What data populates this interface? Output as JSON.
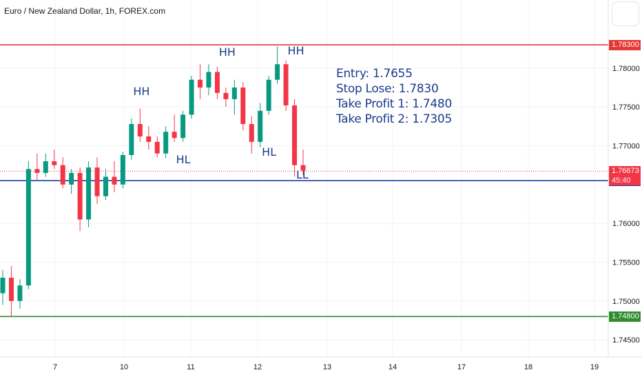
{
  "header": {
    "title": "Euro / New Zealand Dollar, 1h, FOREX.com"
  },
  "colors": {
    "up": "#089981",
    "down": "#f23645",
    "resistance": "#e53935",
    "support": "#1e3fb4",
    "target": "#2e8b2e",
    "annotation": "#1a3a8c"
  },
  "chart_data": {
    "type": "candlestick",
    "instrument": "Euro / New Zealand Dollar",
    "timeframe": "1h",
    "x_ticks": [
      "7",
      "10",
      "11",
      "12",
      "13",
      "14",
      "17",
      "18",
      "19"
    ],
    "y_ticks": [
      "1.78000",
      "1.77500",
      "1.77000",
      "1.76000",
      "1.75500",
      "1.75000",
      "1.74500"
    ],
    "ylim": [
      1.7435,
      1.787
    ],
    "levels": [
      {
        "name": "resistance",
        "value": 1.783,
        "label": "1.78300",
        "color": "#e53935"
      },
      {
        "name": "entry",
        "value": 1.7655,
        "label": "1.76550",
        "color": "#1e3fb4"
      },
      {
        "name": "target",
        "value": 1.748,
        "label": "1.74800",
        "color": "#2e8b2e"
      }
    ],
    "last_price": {
      "value": 1.76673,
      "label": "1.76673",
      "countdown": "45:40"
    },
    "annotations": [
      {
        "text": "HH",
        "x": 16,
        "y": 1.777
      },
      {
        "text": "HL",
        "x": 21,
        "y": 1.7682
      },
      {
        "text": "HH",
        "x": 26,
        "y": 1.782
      },
      {
        "text": "HL",
        "x": 31,
        "y": 1.7692
      },
      {
        "text": "HH",
        "x": 34,
        "y": 1.7822
      },
      {
        "text": "LL",
        "x": 35,
        "y": 1.7662
      }
    ],
    "candles": [
      [
        1.751,
        1.754,
        1.7495,
        1.753
      ],
      [
        1.753,
        1.7545,
        1.748,
        1.75
      ],
      [
        1.75,
        1.7528,
        1.749,
        1.752
      ],
      [
        1.752,
        1.768,
        1.7515,
        1.767
      ],
      [
        1.767,
        1.769,
        1.7655,
        1.7665
      ],
      [
        1.7665,
        1.769,
        1.766,
        1.768
      ],
      [
        1.768,
        1.7695,
        1.767,
        1.7675
      ],
      [
        1.7675,
        1.7685,
        1.7645,
        1.765
      ],
      [
        1.765,
        1.767,
        1.7638,
        1.7665
      ],
      [
        1.7665,
        1.7672,
        1.759,
        1.7605
      ],
      [
        1.7605,
        1.768,
        1.7595,
        1.7672
      ],
      [
        1.7672,
        1.7685,
        1.7625,
        1.7635
      ],
      [
        1.7635,
        1.767,
        1.763,
        1.766
      ],
      [
        1.766,
        1.768,
        1.764,
        1.765
      ],
      [
        1.765,
        1.7692,
        1.7645,
        1.7688
      ],
      [
        1.7688,
        1.7735,
        1.7682,
        1.7728
      ],
      [
        1.7728,
        1.7748,
        1.7705,
        1.7712
      ],
      [
        1.7712,
        1.7725,
        1.7695,
        1.7705
      ],
      [
        1.7705,
        1.7712,
        1.7685,
        1.769
      ],
      [
        1.769,
        1.7725,
        1.7684,
        1.7718
      ],
      [
        1.7718,
        1.774,
        1.7705,
        1.771
      ],
      [
        1.771,
        1.7745,
        1.7705,
        1.774
      ],
      [
        1.774,
        1.779,
        1.7735,
        1.7785
      ],
      [
        1.7785,
        1.7805,
        1.776,
        1.7775
      ],
      [
        1.7775,
        1.7805,
        1.7765,
        1.7795
      ],
      [
        1.7795,
        1.7802,
        1.776,
        1.7768
      ],
      [
        1.7768,
        1.7775,
        1.775,
        1.776
      ],
      [
        1.776,
        1.7785,
        1.774,
        1.7775
      ],
      [
        1.7775,
        1.7782,
        1.772,
        1.7728
      ],
      [
        1.7728,
        1.7738,
        1.769,
        1.7705
      ],
      [
        1.7705,
        1.7755,
        1.7698,
        1.7745
      ],
      [
        1.7745,
        1.779,
        1.774,
        1.7785
      ],
      [
        1.7785,
        1.7828,
        1.778,
        1.7805
      ],
      [
        1.7805,
        1.781,
        1.7745,
        1.7752
      ],
      [
        1.7752,
        1.776,
        1.766,
        1.7675
      ],
      [
        1.7675,
        1.7695,
        1.7662,
        1.7668
      ]
    ]
  }
}
